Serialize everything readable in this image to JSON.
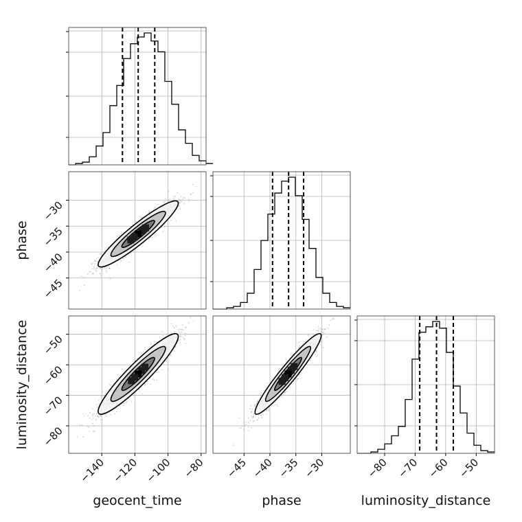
{
  "chart_data": {
    "type": "corner",
    "parameters": [
      "geocent_time",
      "phase",
      "luminosity_distance"
    ],
    "axis_labels": {
      "x": [
        "geocent_time",
        "phase",
        "luminosity_distance"
      ],
      "y": [
        "phase",
        "luminosity_distance"
      ]
    },
    "ranges": {
      "geocent_time": [
        -160,
        -77
      ],
      "phase": [
        -51,
        -24.5
      ],
      "luminosity_distance": [
        -89,
        -44
      ]
    },
    "ticks": {
      "geocent_time": [
        -140,
        -120,
        -100,
        -80
      ],
      "phase": [
        -45,
        -40,
        -35,
        -30
      ],
      "luminosity_distance": [
        -80,
        -70,
        -60,
        -50
      ]
    },
    "tick_labels": {
      "geocent_time": [
        "−140",
        "−120",
        "−100",
        "−80"
      ],
      "phase": [
        "−45",
        "−40",
        "−35",
        "−30"
      ],
      "luminosity_distance": [
        "−80",
        "−70",
        "−60",
        "−50"
      ]
    },
    "quantiles": {
      "geocent_time": [
        -127.5,
        -118,
        -108
      ],
      "phase": [
        -39.5,
        -36.4,
        -33.5
      ],
      "luminosity_distance": [
        -68.5,
        -63,
        -57.5
      ]
    },
    "histograms": {
      "geocent_time": {
        "bin_start": -160,
        "bin_width": 4.15,
        "counts": [
          0,
          1,
          2,
          6,
          14,
          24,
          44,
          59,
          79,
          90,
          95,
          98,
          92,
          84,
          62,
          45,
          26,
          16,
          7,
          3,
          1
        ]
      },
      "phase": {
        "bin_start": -51,
        "bin_width": 1.325,
        "counts": [
          0,
          0,
          1,
          2,
          5,
          12,
          30,
          52,
          72,
          88,
          97,
          100,
          86,
          68,
          46,
          24,
          12,
          5,
          2,
          1
        ]
      },
      "luminosity_distance": {
        "bin_start": -89,
        "bin_width": 2.25,
        "counts": [
          0,
          0,
          1,
          3,
          7,
          13,
          20,
          40,
          70,
          90,
          94,
          98,
          93,
          75,
          50,
          30,
          15,
          6,
          2,
          1
        ]
      }
    },
    "correlations": [
      {
        "x": "geocent_time",
        "y": "phase",
        "mean": [
          -118,
          -36.5
        ],
        "sd": [
          11,
          2.9
        ],
        "rho": 0.93
      },
      {
        "x": "geocent_time",
        "y": "luminosity_distance",
        "mean": [
          -118,
          -63
        ],
        "sd": [
          11,
          6
        ],
        "rho": 0.93
      },
      {
        "x": "phase",
        "y": "luminosity_distance",
        "mean": [
          -36.5,
          -63
        ],
        "sd": [
          2.9,
          6
        ],
        "rho": 0.95
      }
    ],
    "grid": true,
    "colors": {
      "line": "#000000",
      "scatter": "#9a9a9a",
      "grid": "#b0b0b0"
    }
  }
}
